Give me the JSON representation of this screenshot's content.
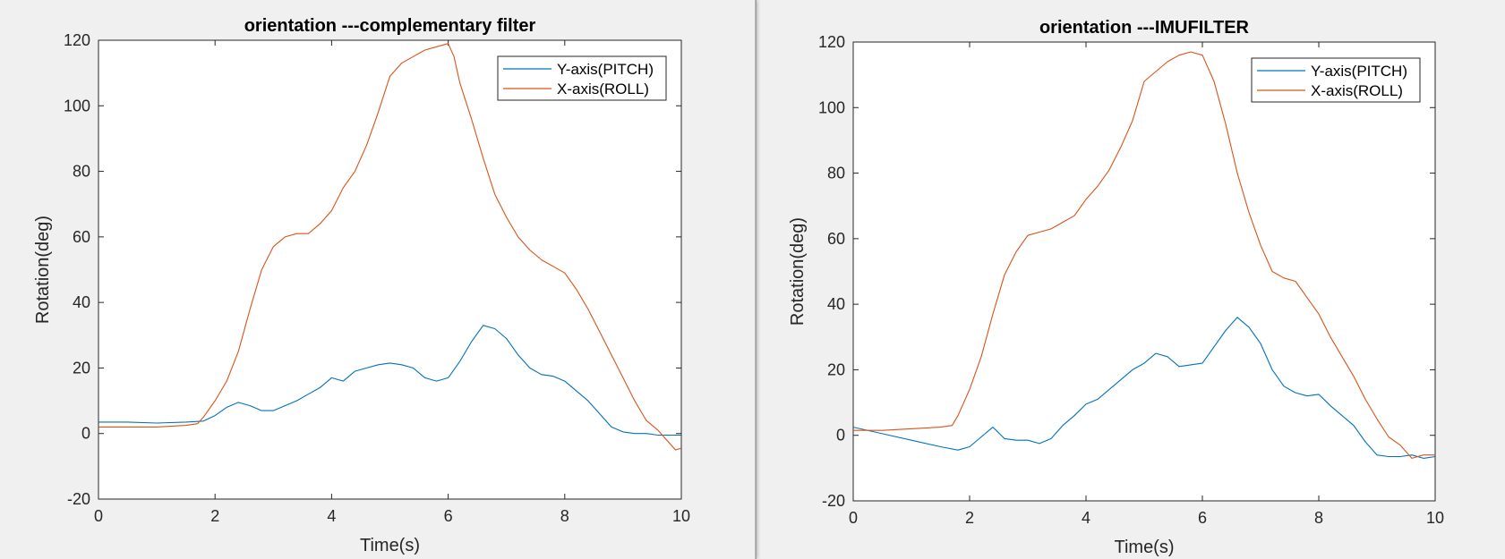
{
  "chart_data": [
    {
      "type": "line",
      "title": "orientation ---complementary filter",
      "xlabel": "Time(s)",
      "ylabel": "Rotation(deg)",
      "xlim": [
        0,
        10
      ],
      "ylim": [
        -20,
        120
      ],
      "xticks": [
        0,
        2,
        4,
        6,
        8,
        10
      ],
      "yticks": [
        -20,
        0,
        20,
        40,
        60,
        80,
        100,
        120
      ],
      "legend_position": "top-right",
      "grid": false,
      "series": [
        {
          "name": "Y-axis(PITCH)",
          "color": "#0072BD",
          "x": [
            0,
            0.5,
            1.0,
            1.5,
            1.8,
            2.0,
            2.2,
            2.4,
            2.6,
            2.8,
            3.0,
            3.2,
            3.4,
            3.6,
            3.8,
            4.0,
            4.2,
            4.4,
            4.6,
            4.8,
            5.0,
            5.2,
            5.4,
            5.6,
            5.8,
            6.0,
            6.2,
            6.4,
            6.6,
            6.8,
            7.0,
            7.2,
            7.4,
            7.6,
            7.8,
            8.0,
            8.2,
            8.4,
            8.6,
            8.8,
            9.0,
            9.2,
            9.4,
            9.6,
            9.8,
            10.0
          ],
          "y": [
            3.5,
            3.5,
            3.2,
            3.5,
            3.8,
            5.5,
            8,
            9.5,
            8.5,
            7,
            7,
            8.5,
            10,
            12,
            14,
            17,
            16,
            19,
            20,
            21,
            21.5,
            21,
            20,
            17,
            16,
            17,
            22,
            28,
            33,
            32,
            29,
            24,
            20,
            18,
            17.5,
            16,
            13,
            10,
            6,
            2,
            0.5,
            0,
            0,
            -0.5,
            -0.5,
            -0.5
          ]
        },
        {
          "name": "X-axis(ROLL)",
          "color": "#D95319",
          "x": [
            0,
            0.5,
            1.0,
            1.5,
            1.7,
            1.8,
            2.0,
            2.2,
            2.4,
            2.6,
            2.8,
            3.0,
            3.2,
            3.4,
            3.6,
            3.8,
            4.0,
            4.2,
            4.4,
            4.6,
            4.8,
            5.0,
            5.2,
            5.4,
            5.6,
            5.8,
            6.0,
            6.1,
            6.2,
            6.4,
            6.6,
            6.8,
            7.0,
            7.2,
            7.4,
            7.6,
            7.8,
            8.0,
            8.2,
            8.4,
            8.6,
            8.8,
            9.0,
            9.2,
            9.4,
            9.6,
            9.8,
            9.9,
            10.0
          ],
          "y": [
            2,
            2,
            2,
            2.5,
            3,
            5,
            10,
            16,
            25,
            38,
            50,
            57,
            60,
            61,
            61,
            64,
            68,
            75,
            80,
            88,
            98,
            109,
            113,
            115,
            117,
            118,
            119,
            115,
            107,
            96,
            84,
            73,
            66,
            60,
            56,
            53,
            51,
            49,
            44,
            38,
            31,
            24,
            17,
            10,
            4,
            1,
            -3,
            -5,
            -4.5
          ]
        }
      ]
    },
    {
      "type": "line",
      "title": "orientation ---IMUFILTER",
      "xlabel": "Time(s)",
      "ylabel": "Rotation(deg)",
      "xlim": [
        0,
        10
      ],
      "ylim": [
        -20,
        120
      ],
      "xticks": [
        0,
        2,
        4,
        6,
        8,
        10
      ],
      "yticks": [
        -20,
        0,
        20,
        40,
        60,
        80,
        100,
        120
      ],
      "legend_position": "top-right",
      "grid": false,
      "series": [
        {
          "name": "Y-axis(PITCH)",
          "color": "#0072BD",
          "x": [
            0,
            0.5,
            1.0,
            1.5,
            1.8,
            2.0,
            2.2,
            2.4,
            2.6,
            2.8,
            3.0,
            3.2,
            3.4,
            3.6,
            3.8,
            4.0,
            4.2,
            4.4,
            4.6,
            4.8,
            5.0,
            5.2,
            5.4,
            5.6,
            5.8,
            6.0,
            6.2,
            6.4,
            6.6,
            6.8,
            7.0,
            7.2,
            7.4,
            7.6,
            7.8,
            8.0,
            8.2,
            8.4,
            8.6,
            8.8,
            9.0,
            9.2,
            9.4,
            9.6,
            9.8,
            10.0
          ],
          "y": [
            2.5,
            0.5,
            -1.5,
            -3.5,
            -4.5,
            -3.5,
            -0.5,
            2.5,
            -1,
            -1.5,
            -1.5,
            -2.5,
            -1,
            3,
            6,
            9.5,
            11,
            14,
            17,
            20,
            22,
            25,
            24,
            21,
            21.5,
            22,
            27,
            32,
            36,
            33,
            28,
            20,
            15,
            13,
            12,
            12.5,
            9,
            6,
            3,
            -2,
            -6,
            -6.5,
            -6.5,
            -6,
            -7,
            -6.5
          ]
        },
        {
          "name": "X-axis(ROLL)",
          "color": "#D95319",
          "x": [
            0,
            0.5,
            1.0,
            1.5,
            1.7,
            1.8,
            2.0,
            2.2,
            2.4,
            2.6,
            2.8,
            3.0,
            3.2,
            3.4,
            3.6,
            3.8,
            4.0,
            4.2,
            4.4,
            4.6,
            4.8,
            5.0,
            5.2,
            5.4,
            5.6,
            5.8,
            6.0,
            6.2,
            6.4,
            6.6,
            6.8,
            7.0,
            7.2,
            7.4,
            7.6,
            7.8,
            8.0,
            8.2,
            8.4,
            8.6,
            8.8,
            9.0,
            9.2,
            9.4,
            9.6,
            9.8,
            10.0
          ],
          "y": [
            1.5,
            1.5,
            2,
            2.5,
            3,
            6,
            14,
            24,
            37,
            49,
            56,
            61,
            62,
            63,
            65,
            67,
            72,
            76,
            81,
            88,
            96,
            108,
            111,
            114,
            116,
            117,
            116,
            108,
            95,
            80,
            68,
            58,
            50,
            48,
            47,
            42,
            37,
            30,
            24,
            18,
            11,
            5,
            -0.5,
            -3,
            -7,
            -6,
            -6
          ]
        }
      ]
    }
  ]
}
